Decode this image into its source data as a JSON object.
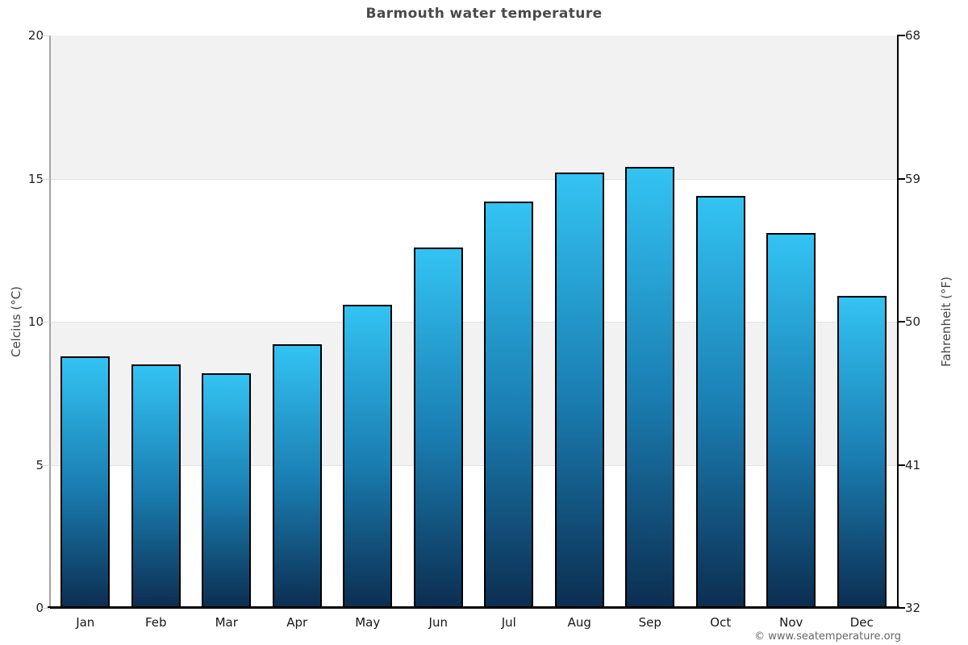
{
  "title": "Barmouth water temperature",
  "footer": "© www.seatemperature.org",
  "axes": {
    "left_label": "Celcius (°C)",
    "right_label": "Fahrenheit (°F)",
    "celsius_ticks": [
      "20",
      "15",
      "10",
      "5",
      "0"
    ],
    "fahrenheit_ticks": [
      "68",
      "59",
      "50",
      "41",
      "32"
    ]
  },
  "chart_data": {
    "type": "bar",
    "title": "Barmouth water temperature",
    "categories": [
      "Jan",
      "Feb",
      "Mar",
      "Apr",
      "May",
      "Jun",
      "Jul",
      "Aug",
      "Sep",
      "Oct",
      "Nov",
      "Dec"
    ],
    "values": [
      8.8,
      8.5,
      8.2,
      9.2,
      10.6,
      12.6,
      14.2,
      15.2,
      15.4,
      14.4,
      13.1,
      10.9
    ],
    "unit": "°C",
    "xlabel": "",
    "ylabel_left": "Celcius (°C)",
    "ylabel_right": "Fahrenheit (°F)",
    "ylim": [
      0,
      20
    ],
    "y_ticks_celsius": [
      20,
      15,
      10,
      5,
      0
    ],
    "y_ticks_fahrenheit": [
      68,
      59,
      50,
      41,
      32
    ],
    "grid": "alternating-horizontal-bands",
    "legend": false
  },
  "colors": {
    "bar_gradient_top": "#33c3f3",
    "bar_gradient_mid": "#1a7db1",
    "bar_gradient_bottom": "#0c2d50",
    "bar_border": "#000000",
    "band_shaded": "#f2f2f2",
    "band_plain": "#ffffff",
    "gridline": "#e2e2e2",
    "left_axis_line": "#a3a3a3",
    "dark_axis_line": "#000000",
    "left_tickmark": "#d5d5d5",
    "title_text": "#4a4a4a",
    "tick_text": "#222222",
    "month_text": "#161616",
    "axis_title_text": "#444444",
    "footer_text": "#666666"
  }
}
